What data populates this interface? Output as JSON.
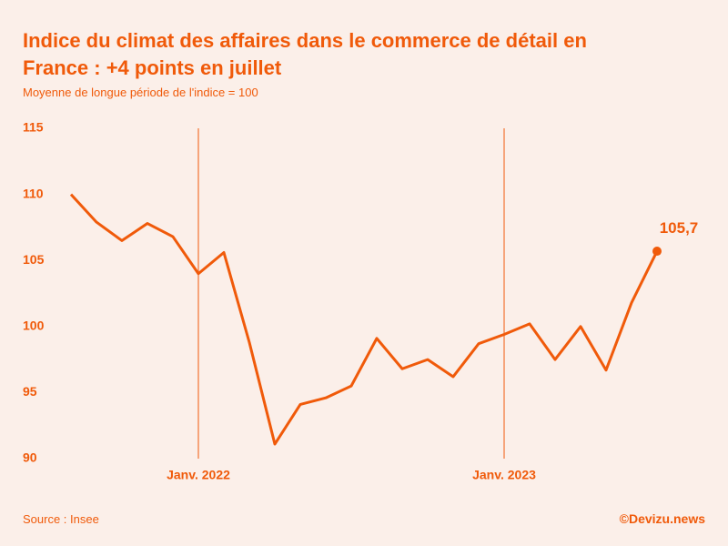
{
  "chart_data": {
    "type": "line",
    "title": "Indice du climat des affaires dans le commerce de détail en France : +4 points en juillet",
    "subtitle": "Moyenne de longue période de l'indice = 100",
    "source": "Source : Insee",
    "credit": "©Devizu.news",
    "categories": [
      null,
      null,
      null,
      null,
      null,
      "Janv. 2022",
      null,
      null,
      null,
      null,
      null,
      null,
      null,
      null,
      null,
      null,
      null,
      "Janv. 2023",
      null,
      null,
      null,
      null,
      null,
      null
    ],
    "values": [
      110.0,
      107.9,
      106.5,
      107.8,
      106.8,
      104.0,
      105.6,
      98.8,
      91.1,
      94.1,
      94.6,
      95.5,
      99.1,
      96.8,
      97.5,
      96.2,
      98.7,
      99.4,
      100.2,
      97.5,
      100.0,
      96.7,
      101.8,
      105.7
    ],
    "value_labels": [
      null,
      null,
      null,
      null,
      null,
      null,
      null,
      null,
      null,
      null,
      null,
      null,
      null,
      null,
      null,
      null,
      null,
      null,
      null,
      null,
      null,
      null,
      null,
      "105,7"
    ],
    "color": "#f05a0a",
    "ylim": [
      90,
      115
    ],
    "yticks": [
      90,
      95,
      100,
      105,
      110,
      115
    ],
    "grid": false
  }
}
